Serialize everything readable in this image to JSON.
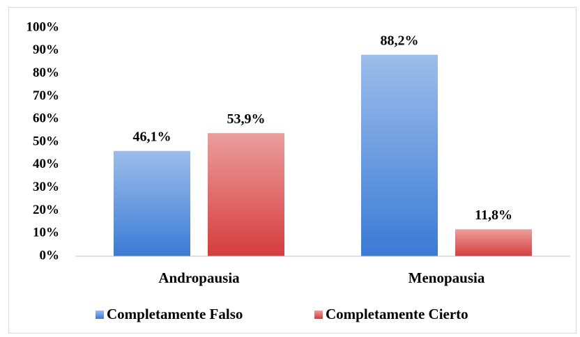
{
  "chart_data": {
    "type": "bar",
    "categories": [
      "Andropausia",
      "Menopausia"
    ],
    "series": [
      {
        "name": "Completamente Falso",
        "color": "#3a7bd5",
        "values": [
          46.1,
          88.2
        ],
        "value_labels": [
          "46,1%",
          "88,2%"
        ]
      },
      {
        "name": "Completamente Cierto",
        "color": "#d63c3c",
        "values": [
          53.9,
          11.8
        ],
        "value_labels": [
          "53,9%",
          "11,8%"
        ]
      }
    ],
    "ylim": [
      0,
      100
    ],
    "yticks": [
      {
        "value": 0,
        "label": "0%"
      },
      {
        "value": 10,
        "label": "10%"
      },
      {
        "value": 20,
        "label": "20%"
      },
      {
        "value": 30,
        "label": "30%"
      },
      {
        "value": 40,
        "label": "40%"
      },
      {
        "value": 50,
        "label": "50%"
      },
      {
        "value": 60,
        "label": "60%"
      },
      {
        "value": 70,
        "label": "70%"
      },
      {
        "value": 80,
        "label": "80%"
      },
      {
        "value": 90,
        "label": "90%"
      },
      {
        "value": 100,
        "label": "100%"
      }
    ],
    "grid": false,
    "legend": "bottom"
  }
}
